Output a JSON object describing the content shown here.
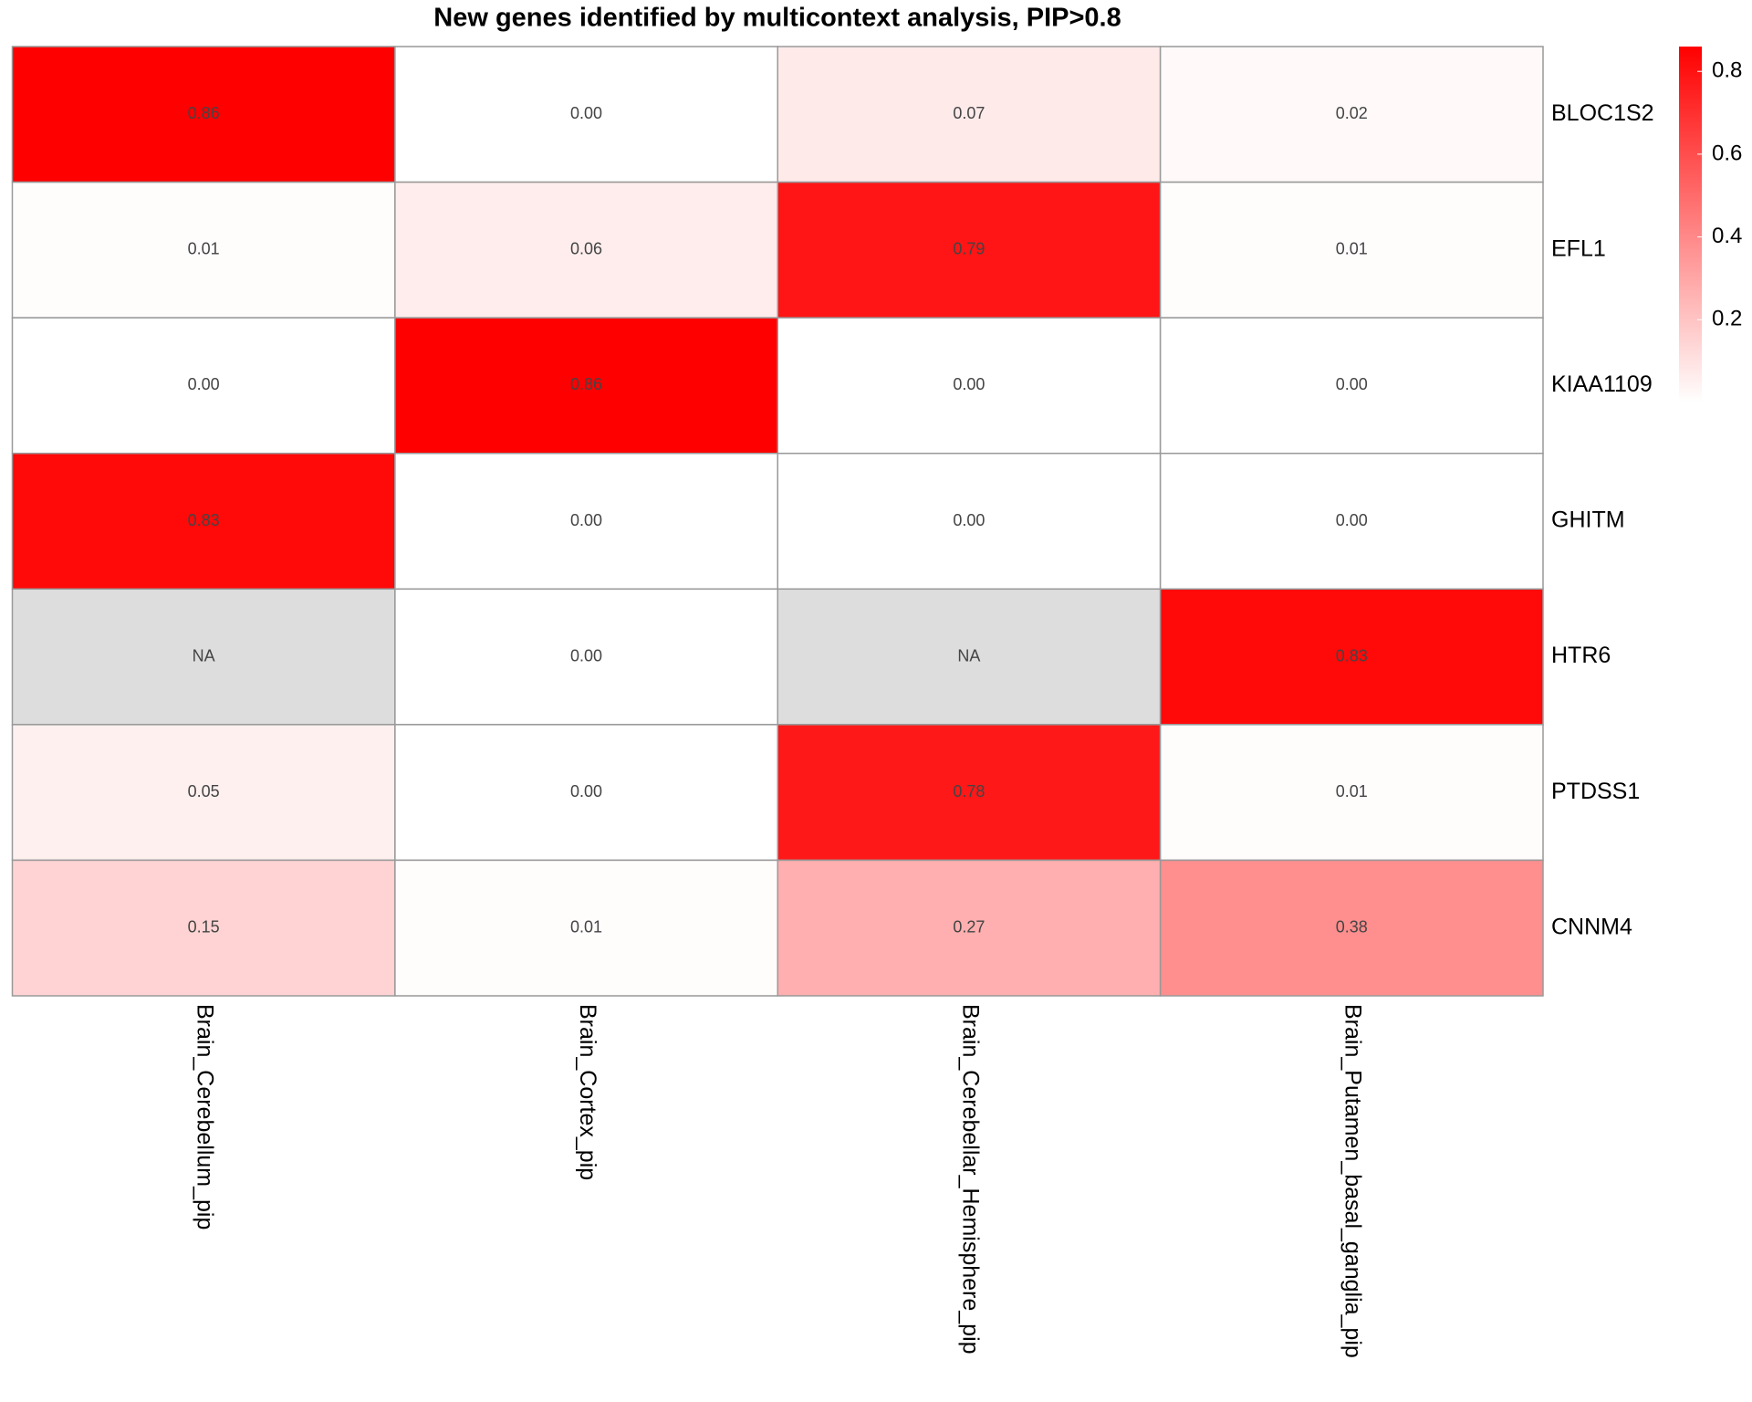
{
  "chart_data": {
    "type": "heatmap",
    "title": "New genes identified by multicontext analysis, PIP>0.8",
    "columns": [
      "Brain_Cerebellum_pip",
      "Brain_Cortex_pip",
      "Brain_Cerebellar_Hemisphere_pip",
      "Brain_Putamen_basal_ganglia_pip"
    ],
    "rows": [
      "BLOC1S2",
      "EFL1",
      "KIAA1109",
      "GHITM",
      "HTR6",
      "PTDSS1",
      "CNNM4"
    ],
    "values": [
      [
        0.86,
        0.0,
        0.07,
        0.02
      ],
      [
        0.01,
        0.06,
        0.79,
        0.01
      ],
      [
        0.0,
        0.86,
        0.0,
        0.0
      ],
      [
        0.83,
        0.0,
        0.0,
        0.0
      ],
      [
        null,
        0.0,
        null,
        0.83
      ],
      [
        0.05,
        0.0,
        0.78,
        0.01
      ],
      [
        0.15,
        0.01,
        0.27,
        0.38
      ]
    ],
    "value_labels": [
      [
        "0.86",
        "0.00",
        "0.07",
        "0.02"
      ],
      [
        "0.01",
        "0.06",
        "0.79",
        "0.01"
      ],
      [
        "0.00",
        "0.86",
        "0.00",
        "0.00"
      ],
      [
        "0.83",
        "0.00",
        "0.00",
        "0.00"
      ],
      [
        "NA",
        "0.00",
        "NA",
        "0.83"
      ],
      [
        "0.05",
        "0.00",
        "0.78",
        "0.01"
      ],
      [
        "0.15",
        "0.01",
        "0.27",
        "0.38"
      ]
    ],
    "zlim": [
      0,
      0.86
    ],
    "zticks": [
      0.2,
      0.4,
      0.6,
      0.8
    ],
    "colors": {
      "low": "#ffffff",
      "high": "#ff0000",
      "na": "#dddddd"
    }
  }
}
